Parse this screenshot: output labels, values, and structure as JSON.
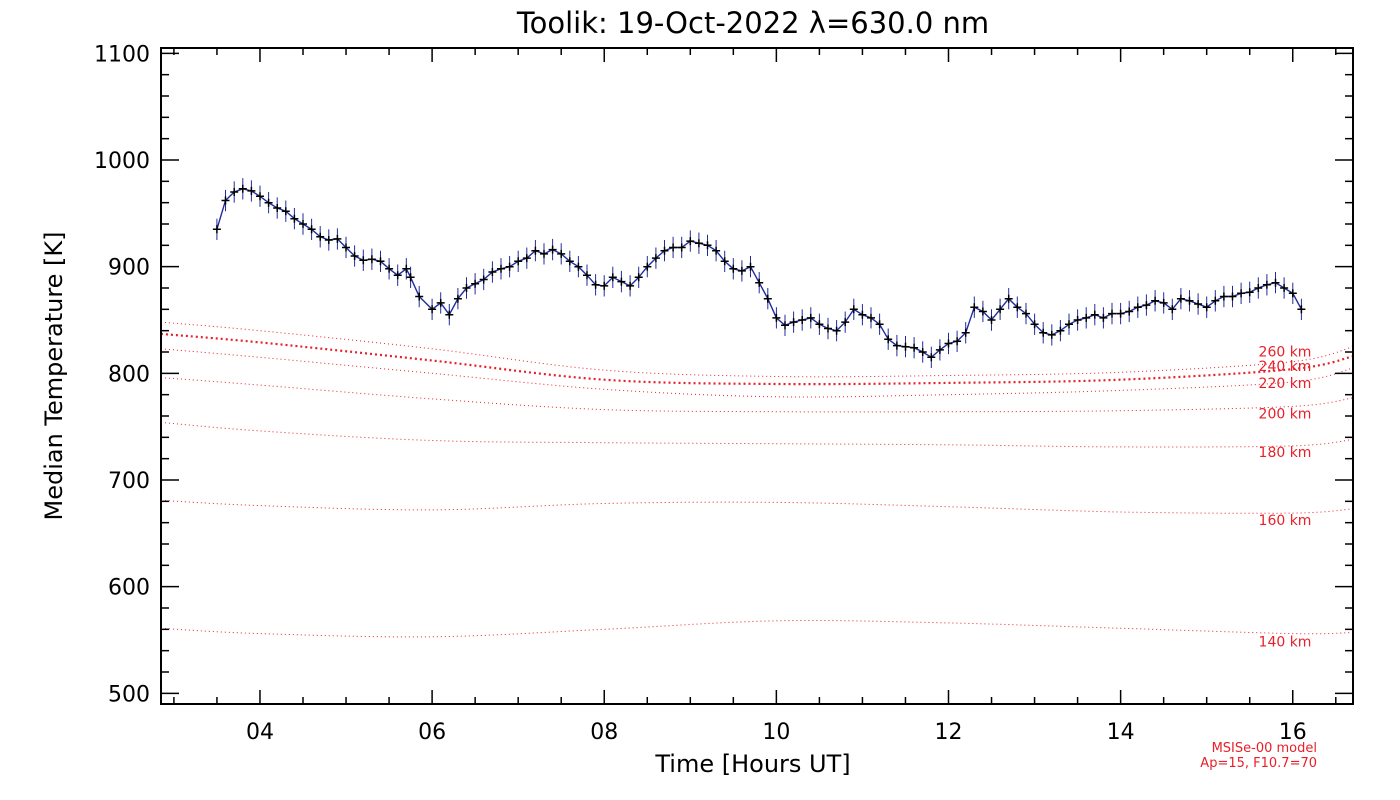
{
  "colors": {
    "data_line": "#1f2d9e",
    "data_marker": "#000000",
    "model": "#e8202a",
    "axes": "#000000"
  },
  "chart_data": {
    "type": "line",
    "title": "Toolik: 19-Oct-2022 λ=630.0 nm",
    "xlabel": "Time [Hours UT]",
    "ylabel": "Median Temperature [K]",
    "xlim": [
      2.85,
      16.7
    ],
    "ylim": [
      490,
      1105
    ],
    "x_ticks": [
      4,
      6,
      8,
      10,
      12,
      14,
      16
    ],
    "x_tick_labels": [
      "04",
      "06",
      "08",
      "10",
      "12",
      "14",
      "16"
    ],
    "y_ticks": [
      500,
      600,
      700,
      800,
      900,
      1000,
      1100
    ],
    "y_tick_labels": [
      "500",
      "600",
      "700",
      "800",
      "900",
      "1000",
      "1100"
    ],
    "grid": false,
    "series": [
      {
        "kind": "measured",
        "errorbar_k": 10,
        "x": [
          3.5,
          3.6,
          3.7,
          3.8,
          3.9,
          4.0,
          4.1,
          4.2,
          4.3,
          4.4,
          4.5,
          4.6,
          4.7,
          4.8,
          4.9,
          5.0,
          5.1,
          5.2,
          5.3,
          5.4,
          5.5,
          5.6,
          5.7,
          5.75,
          5.85,
          6.0,
          6.1,
          6.2,
          6.3,
          6.4,
          6.5,
          6.6,
          6.7,
          6.8,
          6.9,
          7.0,
          7.1,
          7.2,
          7.3,
          7.4,
          7.5,
          7.6,
          7.7,
          7.8,
          7.9,
          8.0,
          8.1,
          8.2,
          8.3,
          8.4,
          8.5,
          8.6,
          8.7,
          8.8,
          8.9,
          9.0,
          9.1,
          9.2,
          9.3,
          9.4,
          9.5,
          9.6,
          9.7,
          9.8,
          9.9,
          10.0,
          10.1,
          10.2,
          10.3,
          10.4,
          10.5,
          10.6,
          10.7,
          10.8,
          10.9,
          11.0,
          11.1,
          11.2,
          11.3,
          11.4,
          11.5,
          11.6,
          11.7,
          11.8,
          11.9,
          12.0,
          12.1,
          12.2,
          12.3,
          12.4,
          12.5,
          12.6,
          12.7,
          12.8,
          12.9,
          13.0,
          13.1,
          13.2,
          13.3,
          13.4,
          13.5,
          13.6,
          13.7,
          13.8,
          13.9,
          14.0,
          14.1,
          14.2,
          14.3,
          14.4,
          14.5,
          14.6,
          14.7,
          14.8,
          14.9,
          15.0,
          15.1,
          15.2,
          15.3,
          15.4,
          15.5,
          15.6,
          15.7,
          15.8,
          15.9,
          16.0,
          16.1
        ],
        "y": [
          935,
          962,
          970,
          973,
          971,
          966,
          960,
          955,
          952,
          945,
          940,
          935,
          928,
          925,
          926,
          918,
          910,
          906,
          907,
          905,
          898,
          892,
          898,
          890,
          872,
          860,
          866,
          855,
          870,
          880,
          884,
          888,
          895,
          898,
          900,
          905,
          908,
          915,
          912,
          916,
          912,
          905,
          900,
          892,
          883,
          882,
          890,
          886,
          882,
          890,
          900,
          908,
          915,
          918,
          918,
          924,
          922,
          920,
          915,
          905,
          898,
          896,
          900,
          885,
          870,
          852,
          845,
          848,
          850,
          852,
          846,
          842,
          840,
          848,
          860,
          855,
          852,
          846,
          832,
          826,
          825,
          824,
          820,
          815,
          822,
          828,
          830,
          838,
          862,
          858,
          850,
          860,
          870,
          862,
          856,
          846,
          838,
          836,
          840,
          846,
          850,
          852,
          855,
          852,
          856,
          856,
          858,
          862,
          864,
          868,
          866,
          860,
          870,
          868,
          865,
          862,
          868,
          872,
          872,
          875,
          876,
          880,
          883,
          885,
          880,
          875,
          860
        ]
      }
    ],
    "model": {
      "name": "MSISe-00 model",
      "params": "Ap=15, F10.7=70",
      "x": [
        2.85,
        4,
        6,
        8,
        10,
        12,
        14,
        16,
        16.7
      ],
      "curves": [
        {
          "label": "140 km",
          "y": [
            561,
            556,
            553,
            560,
            568,
            566,
            561,
            556,
            557
          ]
        },
        {
          "label": "160 km",
          "y": [
            681,
            676,
            672,
            678,
            679,
            675,
            670,
            669,
            673
          ]
        },
        {
          "label": "180 km",
          "y": [
            754,
            746,
            737,
            735,
            734,
            733,
            731,
            732,
            738
          ]
        },
        {
          "label": "200 km",
          "y": [
            796,
            789,
            776,
            766,
            764,
            764,
            765,
            769,
            777
          ]
        },
        {
          "label": "220 km",
          "y": [
            823,
            815,
            800,
            785,
            778,
            780,
            784,
            792,
            805
          ]
        },
        {
          "label": "240 km",
          "y": [
            837,
            829,
            812,
            794,
            790,
            791,
            794,
            804,
            816
          ]
        },
        {
          "label": "260 km",
          "y": [
            848,
            840,
            823,
            803,
            797,
            798,
            801,
            811,
            825
          ]
        }
      ]
    }
  }
}
